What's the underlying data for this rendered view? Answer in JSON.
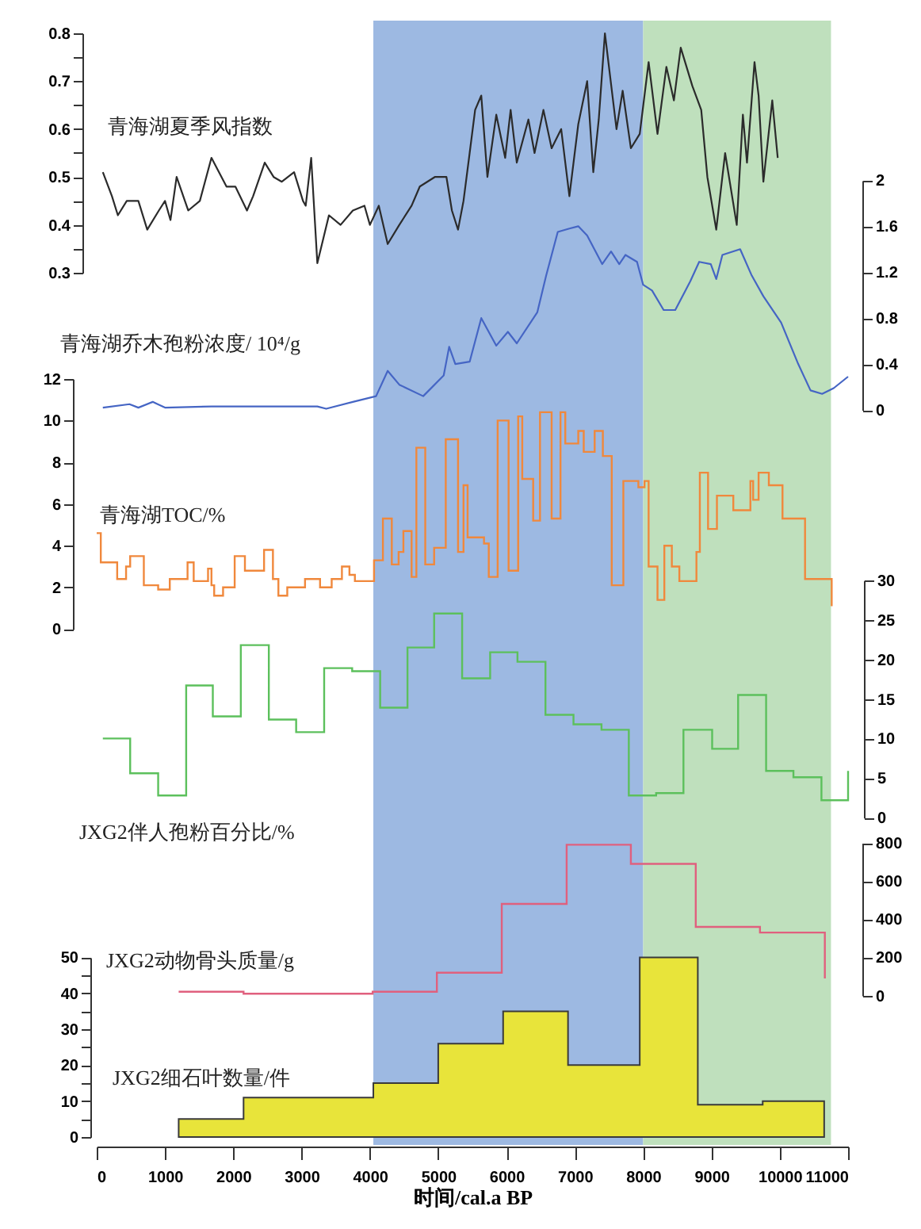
{
  "chart_data": [
    {
      "type": "line",
      "xlim": [
        0,
        11000
      ],
      "tick_labels": "y",
      "ylim": [
        0.3,
        0.8
      ],
      "yticks": [
        0.3,
        {
          "value": 0.35,
          "label": null
        },
        0.4,
        {
          "value": 0.45,
          "label": null
        },
        0.5,
        {
          "value": 0.55,
          "label": null
        },
        0.6,
        {
          "value": 0.65,
          "label": null
        },
        0.7,
        {
          "value": 0.75,
          "label": null
        },
        0.8
      ],
      "grid": false,
      "legend": false,
      "bands": [
        {
          "axis": "x",
          "from": 4050,
          "to": 8000,
          "color": "#9db9e2"
        },
        {
          "axis": "x",
          "from": 8000,
          "to": 10750,
          "color": "#bfe0bd"
        }
      ],
      "series": [
        {
          "name": "青海湖夏季风指数",
          "color": "#2b2b2b",
          "x": [
            90,
            223,
            310,
            440,
            610,
            740,
            910,
            1000,
            1080,
            1170,
            1340,
            1510,
            1680,
            1900,
            2030,
            2200,
            2290,
            2460,
            2590,
            2710,
            2890,
            3020,
            3060,
            3140,
            3230,
            3400,
            3570,
            3750,
            3920,
            4000,
            4130,
            4260,
            4430,
            4610,
            4730,
            4950,
            5120,
            5200,
            5290,
            5370,
            5460,
            5540,
            5630,
            5720,
            5850,
            5980,
            6060,
            6150,
            6320,
            6410,
            6540,
            6660,
            6800,
            6920,
            7050,
            7180,
            7270,
            7350,
            7440,
            7610,
            7700,
            7820,
            7950,
            8080,
            8210,
            8340,
            8450,
            8550,
            8720,
            8850,
            8940,
            9070,
            9200,
            9370,
            9460,
            9520,
            9630,
            9690,
            9760,
            9890,
            9970
          ],
          "values": [
            0.51,
            0.46,
            0.42,
            0.45,
            0.45,
            0.39,
            0.43,
            0.45,
            0.41,
            0.5,
            0.43,
            0.45,
            0.54,
            0.48,
            0.48,
            0.43,
            0.46,
            0.53,
            0.5,
            0.49,
            0.51,
            0.45,
            0.44,
            0.54,
            0.32,
            0.42,
            0.4,
            0.43,
            0.44,
            0.4,
            0.44,
            0.36,
            0.4,
            0.44,
            0.48,
            0.5,
            0.5,
            0.43,
            0.39,
            0.45,
            0.55,
            0.64,
            0.67,
            0.5,
            0.63,
            0.54,
            0.64,
            0.53,
            0.62,
            0.55,
            0.64,
            0.56,
            0.6,
            0.46,
            0.61,
            0.7,
            0.51,
            0.62,
            0.8,
            0.6,
            0.68,
            0.56,
            0.59,
            0.74,
            0.59,
            0.73,
            0.66,
            0.77,
            0.69,
            0.64,
            0.5,
            0.39,
            0.55,
            0.4,
            0.63,
            0.53,
            0.74,
            0.67,
            0.49,
            0.66,
            0.54
          ]
        }
      ]
    },
    {
      "type": "line",
      "xlim": [
        0,
        11000
      ],
      "tick_labels": "y",
      "ylim": [
        0,
        2
      ],
      "yticks": [
        0,
        0.4,
        0.8,
        1.2,
        1.6,
        2
      ],
      "grid": false,
      "legend": false,
      "series": [
        {
          "name": "青海湖乔木孢粉浓度/ 10⁴/g",
          "color": "#4565c4",
          "x": [
            90,
            480,
            610,
            820,
            1000,
            1680,
            2460,
            3230,
            3360,
            3750,
            4090,
            4260,
            4430,
            4780,
            5080,
            5160,
            5250,
            5460,
            5630,
            5850,
            6020,
            6150,
            6450,
            6580,
            6750,
            6920,
            7050,
            7180,
            7400,
            7530,
            7650,
            7740,
            7910,
            8000,
            8130,
            8300,
            8470,
            8690,
            8820,
            8990,
            9070,
            9160,
            9420,
            9590,
            9760,
            10020,
            10270,
            10450,
            10620,
            10790,
            11000
          ],
          "values": [
            0.02,
            0.05,
            0.02,
            0.07,
            0.02,
            0.03,
            0.03,
            0.03,
            0.01,
            0.07,
            0.12,
            0.34,
            0.22,
            0.12,
            0.3,
            0.55,
            0.4,
            0.42,
            0.8,
            0.56,
            0.68,
            0.58,
            0.85,
            1.17,
            1.55,
            1.58,
            1.6,
            1.52,
            1.27,
            1.38,
            1.27,
            1.35,
            1.29,
            1.09,
            1.04,
            0.87,
            0.87,
            1.12,
            1.29,
            1.27,
            1.14,
            1.35,
            1.4,
            1.17,
            0.99,
            0.76,
            0.4,
            0.17,
            0.14,
            0.19,
            0.29
          ]
        }
      ]
    },
    {
      "type": "step",
      "xlim": [
        0,
        11000
      ],
      "tick_labels": "y",
      "ylim": [
        0,
        12
      ],
      "yticks": [
        0,
        2,
        4,
        6,
        8,
        10,
        12
      ],
      "grid": false,
      "legend": false,
      "series": [
        {
          "name": "青海湖TOC/%",
          "color": "#f0883c",
          "x": [
            0,
            60,
            300,
            430,
            490,
            690,
            900,
            1070,
            1330,
            1420,
            1630,
            1680,
            1720,
            1850,
            2020,
            2170,
            2450,
            2580,
            2660,
            2790,
            3050,
            3270,
            3440,
            3590,
            3700,
            3780,
            4060,
            4190,
            4320,
            4420,
            4490,
            4610,
            4680,
            4810,
            4940,
            5110,
            5290,
            5370,
            5430,
            5670,
            5740,
            5870,
            6030,
            6170,
            6230,
            6390,
            6490,
            6660,
            6790,
            6860,
            7050,
            7130,
            7290,
            7410,
            7540,
            7710,
            7930,
            8020,
            8080,
            8210,
            8310,
            8420,
            8530,
            8780,
            8830,
            8950,
            9080,
            9320,
            9570,
            9610,
            9690,
            9840,
            10040,
            10370,
            10760
          ],
          "values": [
            4.6,
            3.2,
            2.4,
            3.0,
            3.5,
            2.1,
            1.9,
            2.4,
            3.2,
            2.3,
            2.9,
            2.1,
            1.6,
            2.0,
            3.5,
            2.8,
            3.8,
            2.4,
            1.6,
            2.0,
            2.4,
            2.0,
            2.4,
            3.0,
            2.6,
            2.3,
            3.3,
            5.3,
            3.1,
            3.7,
            4.7,
            2.5,
            8.7,
            3.1,
            3.9,
            9.1,
            3.7,
            6.9,
            4.4,
            4.1,
            2.5,
            10.0,
            2.8,
            10.2,
            7.2,
            5.2,
            10.4,
            5.3,
            10.4,
            8.9,
            9.5,
            8.5,
            9.5,
            8.3,
            2.1,
            7.1,
            6.8,
            7.1,
            3.0,
            1.4,
            4.0,
            3.0,
            2.3,
            3.7,
            7.5,
            4.8,
            6.4,
            5.7,
            7.1,
            6.2,
            7.5,
            6.9,
            5.3,
            2.4,
            1.1
          ]
        }
      ]
    },
    {
      "type": "step",
      "xlim": [
        0,
        11000
      ],
      "tick_labels": "y",
      "ylim": [
        0,
        30
      ],
      "yticks": [
        0,
        5,
        10,
        15,
        20,
        25,
        30
      ],
      "grid": false,
      "legend": false,
      "series": [
        {
          "name": "JXG2伴人孢粉百分比/%",
          "color": "#5cc05c",
          "x": [
            90,
            490,
            900,
            1310,
            1700,
            2110,
            2520,
            2920,
            3330,
            3740,
            4150,
            4550,
            4940,
            5350,
            5760,
            6160,
            6570,
            6980,
            7390,
            7790,
            8190,
            8590,
            9010,
            9390,
            9800,
            10200,
            10610,
            11000
          ],
          "values": [
            10,
            5.6,
            2.8,
            16.7,
            12.8,
            21.8,
            12.4,
            10.8,
            18.9,
            18.5,
            13.9,
            21.5,
            25.8,
            17.6,
            20.9,
            19.7,
            13,
            11.8,
            11.1,
            2.8,
            3.1,
            11.1,
            8.7,
            15.5,
            5.9,
            5.1,
            2.2,
            5.9
          ]
        }
      ]
    },
    {
      "type": "step",
      "xlim": [
        0,
        11000
      ],
      "tick_labels": "y",
      "ylim": [
        0,
        800
      ],
      "yticks": [
        0,
        200,
        400,
        600,
        800
      ],
      "grid": false,
      "legend": false,
      "series": [
        {
          "name": "JXG2动物骨头质量/g",
          "color": "#e0607e",
          "x": [
            1200,
            2150,
            3090,
            4040,
            4980,
            5930,
            6880,
            7820,
            8770,
            9710,
            10660
          ],
          "values": [
            20,
            10,
            10,
            20,
            120,
            480,
            790,
            690,
            360,
            330,
            90
          ]
        }
      ]
    },
    {
      "type": "area",
      "xlabel": "时间/cal.a BP",
      "xlim": [
        0,
        11000
      ],
      "xticks": [
        0,
        1000,
        2000,
        3000,
        4000,
        5000,
        6000,
        7000,
        8000,
        9000,
        10000,
        11000
      ],
      "ylim": [
        0,
        50
      ],
      "yticks": [
        0,
        {
          "value": 5,
          "label": null
        },
        10,
        {
          "value": 15,
          "label": null
        },
        20,
        {
          "value": 25,
          "label": null
        },
        30,
        {
          "value": 35,
          "label": null
        },
        40,
        {
          "value": 45,
          "label": null
        },
        50
      ],
      "grid": false,
      "legend": false,
      "series": [
        {
          "name": "JXG2细石叶数量/件",
          "color": "#e8e43a",
          "x": [
            1200,
            2150,
            4050,
            5000,
            5950,
            6900,
            7950,
            8800,
            9750,
            10650
          ],
          "values": [
            5,
            11,
            15,
            26,
            35,
            20,
            50,
            9,
            10,
            10
          ]
        }
      ]
    }
  ]
}
